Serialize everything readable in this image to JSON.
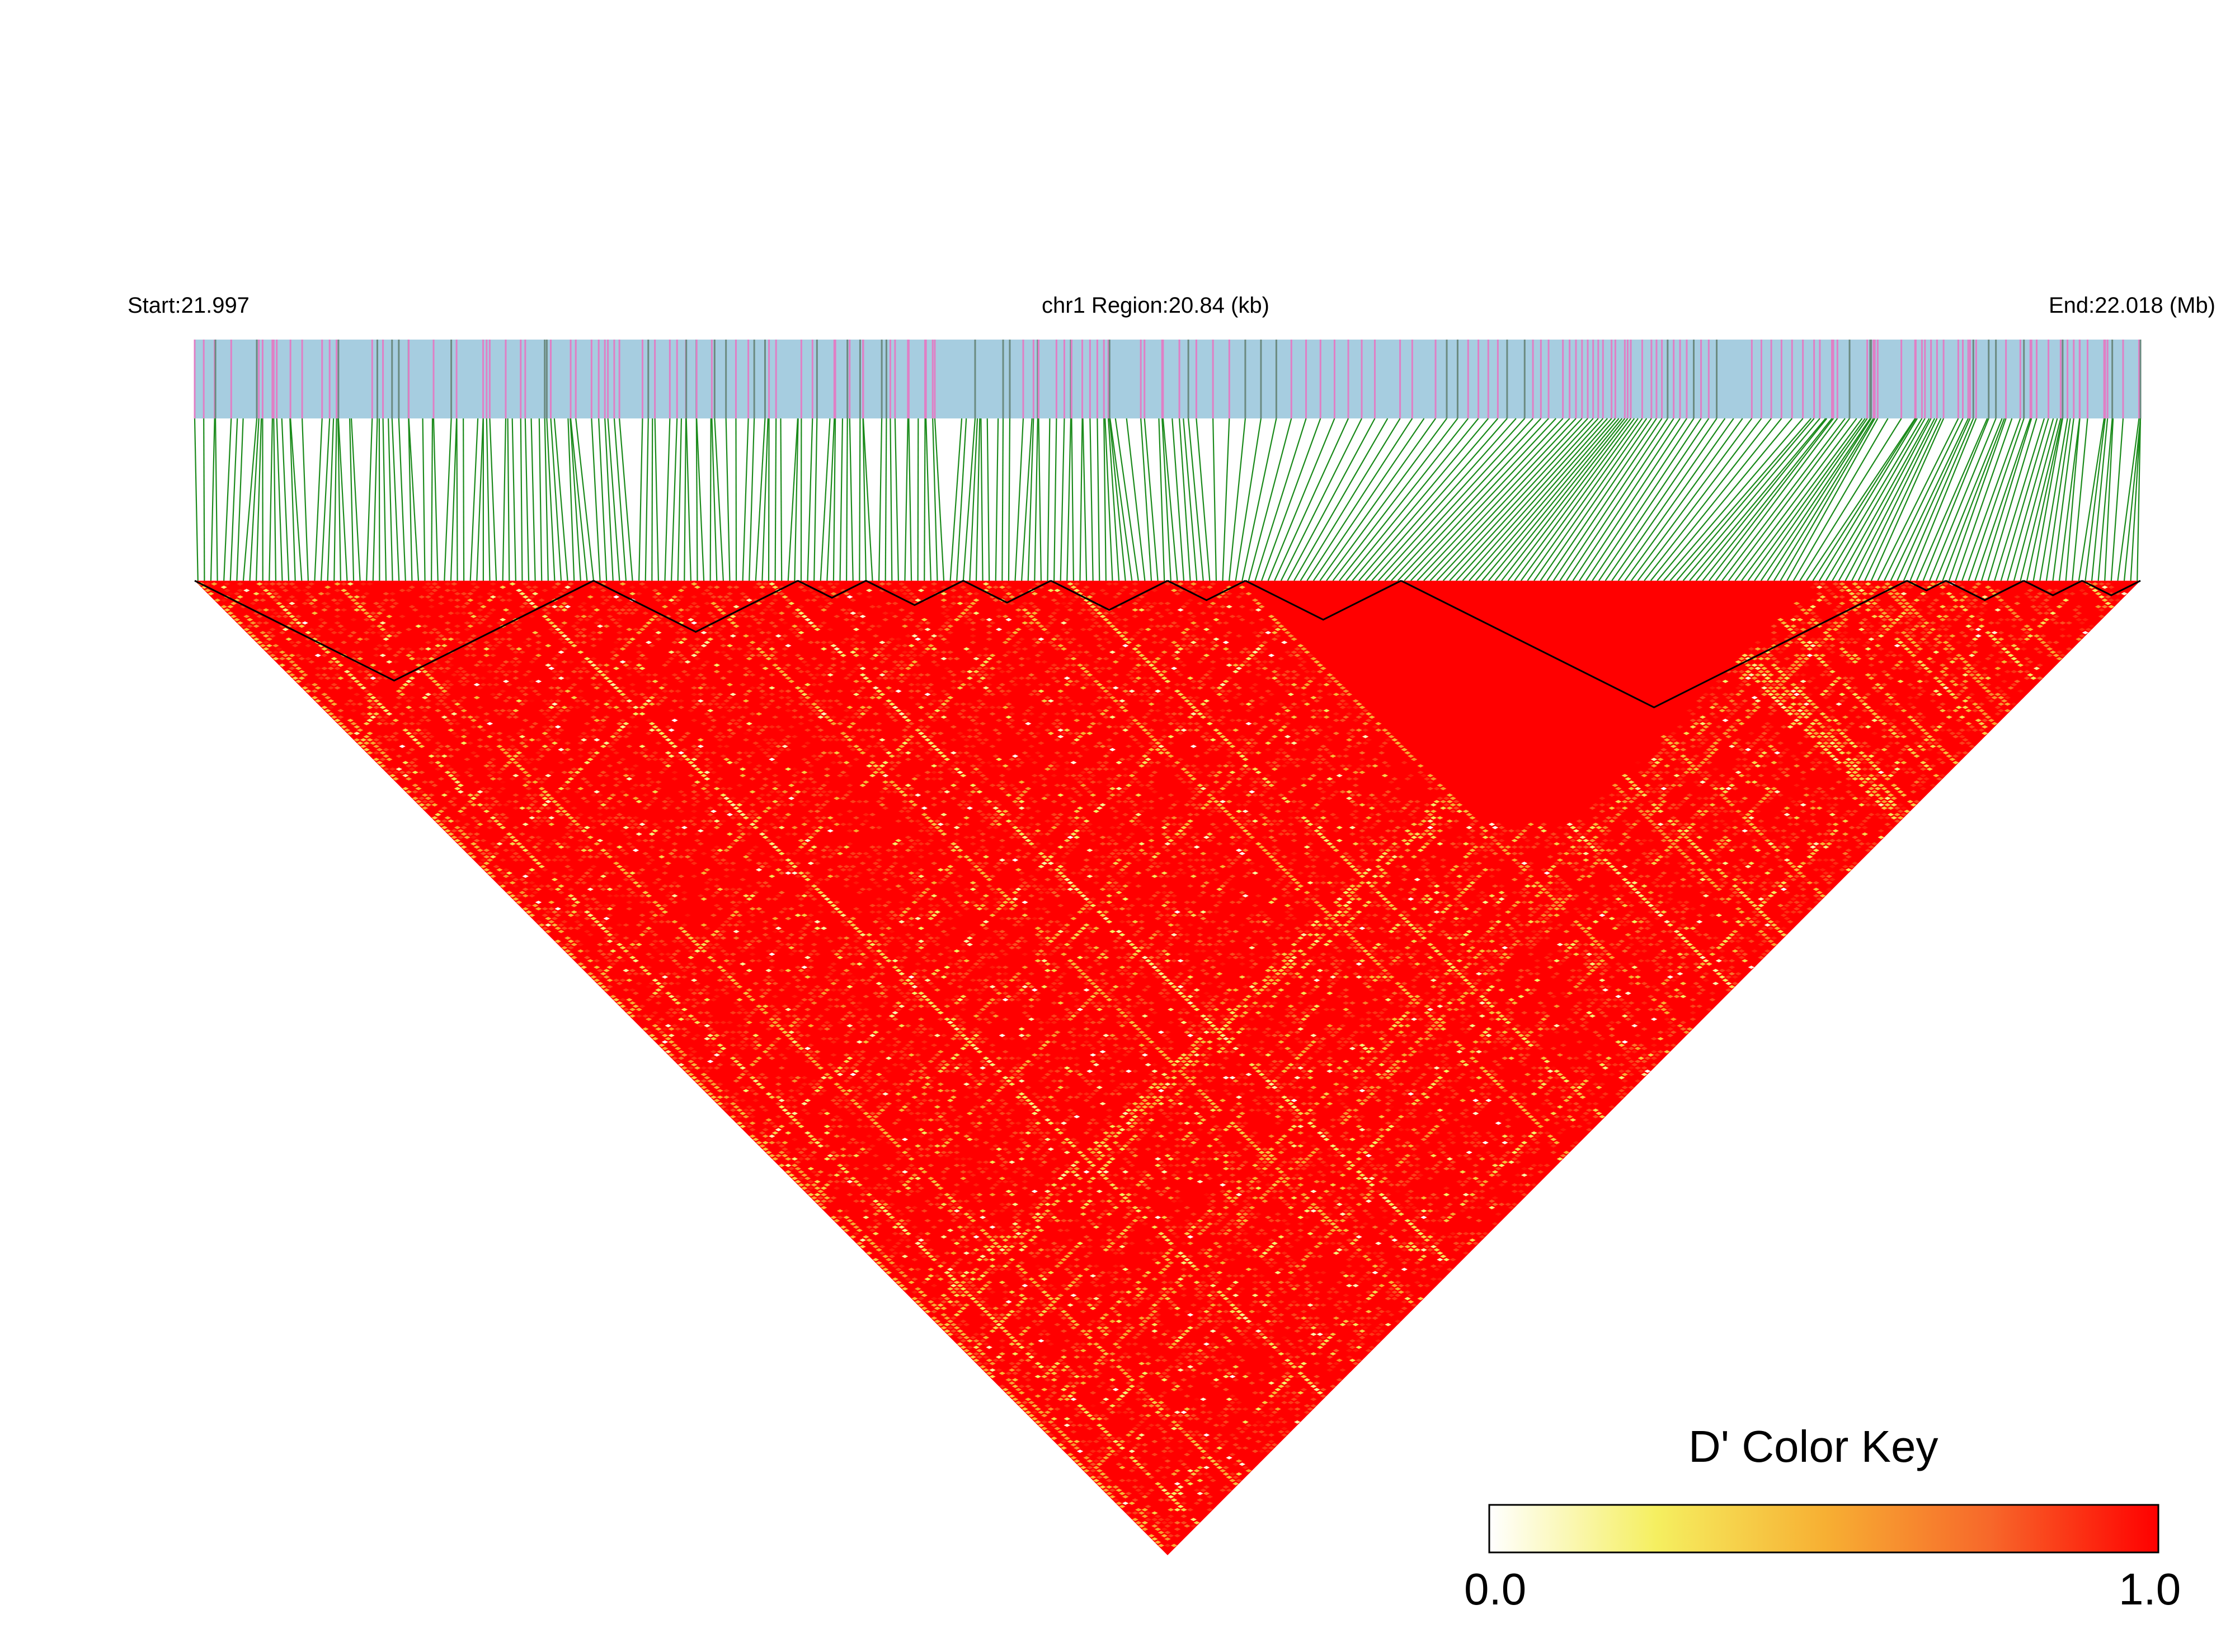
{
  "chart_data": {
    "type": "heatmap",
    "title": "",
    "region": {
      "start_label": "Start:21.997",
      "center_label": "chr1 Region:20.84 (kb)",
      "end_label": "End:22.018 (Mb)",
      "start_mb": 21.997,
      "end_mb": 22.018,
      "length_kb": 20.84
    },
    "snp_track": {
      "background_color": "#a6cde0",
      "highlight_color": "#e07fc5",
      "dark_color": "#6b8a80",
      "connector_color": "#1a8a1a",
      "snp_count": 300,
      "dense_cluster_fraction": [
        0.72,
        0.75
      ]
    },
    "matrix": {
      "metric": "D'",
      "dominant_value": 1.0,
      "note": "pairwise LD matrix shown as inverted triangle; predominantly high D' with scattered low-D' cells"
    },
    "haplotype_blocks_snp_fraction": [
      [
        0.0,
        0.205
      ],
      [
        0.205,
        0.31
      ],
      [
        0.31,
        0.345
      ],
      [
        0.345,
        0.395
      ],
      [
        0.395,
        0.44
      ],
      [
        0.44,
        0.5
      ],
      [
        0.5,
        0.54
      ],
      [
        0.54,
        0.62
      ],
      [
        0.62,
        0.88
      ],
      [
        0.88,
        0.9
      ],
      [
        0.9,
        0.94
      ],
      [
        0.94,
        0.97
      ],
      [
        0.97,
        1.0
      ]
    ],
    "color_key": {
      "title": "D' Color Key",
      "min_label": "0.0",
      "max_label": "1.0",
      "min": 0.0,
      "max": 1.0,
      "colors": [
        "#ffffff",
        "#f5ef60",
        "#f7b033",
        "#f7672a",
        "#ff0000"
      ]
    }
  }
}
